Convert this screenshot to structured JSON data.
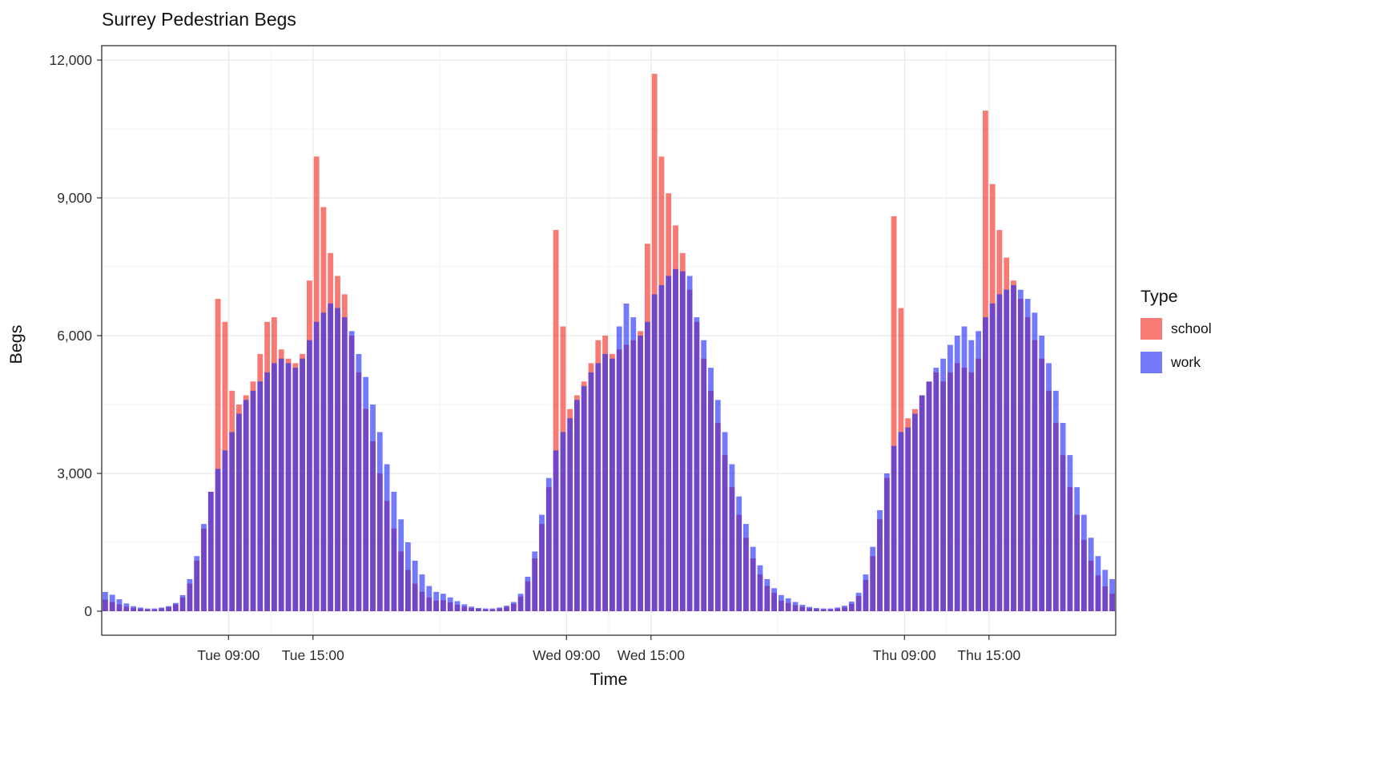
{
  "title": "Surrey Pedestrian Begs",
  "axes": {
    "x_label": "Time",
    "y_label": "Begs"
  },
  "legend": {
    "title": "Type",
    "items": [
      {
        "label": "school",
        "color": "rgba(244,40,30,0.62)"
      },
      {
        "label": "work",
        "color": "rgba(30,40,250,0.62)"
      }
    ]
  },
  "colors": {
    "school_fill": "rgba(244,40,30,0.62)",
    "work_fill": "rgba(30,40,250,0.62)",
    "overlap_appearance": "#7047C7",
    "grid_major": "#e4e4e4",
    "panel_border": "#222222"
  },
  "chart_data": {
    "type": "bar",
    "title": "Surrey Pedestrian Begs",
    "xlabel": "Time",
    "ylabel": "Begs",
    "ylim": [
      0,
      12000
    ],
    "x_start": "Tue 00:00",
    "interval_minutes": 30,
    "hours_span": 72,
    "legend_position": "right",
    "grid": {
      "major_y": [
        0,
        3000,
        6000,
        9000,
        12000
      ],
      "minor_y": [
        1500,
        4500,
        7500,
        10500
      ],
      "major_x_hours": [
        9,
        15,
        33,
        39,
        57,
        63
      ],
      "minor_x_hours": [
        12,
        24,
        36,
        48,
        60
      ]
    },
    "y_ticks": [
      {
        "value": 0,
        "label": "0"
      },
      {
        "value": 3000,
        "label": "3,000"
      },
      {
        "value": 6000,
        "label": "6,000"
      },
      {
        "value": 9000,
        "label": "9,000"
      },
      {
        "value": 12000,
        "label": "12,000"
      }
    ],
    "x_ticks": [
      {
        "hour": 9,
        "label": "Tue 09:00"
      },
      {
        "hour": 15,
        "label": "Tue 15:00"
      },
      {
        "hour": 33,
        "label": "Wed 09:00"
      },
      {
        "hour": 39,
        "label": "Wed 15:00"
      },
      {
        "hour": 57,
        "label": "Thu 09:00"
      },
      {
        "hour": 63,
        "label": "Thu 15:00"
      }
    ],
    "series": [
      {
        "name": "school",
        "color": "rgba(244,40,30,0.62)",
        "values": [
          250,
          200,
          150,
          100,
          70,
          50,
          40,
          40,
          60,
          90,
          150,
          300,
          600,
          1100,
          1800,
          2600,
          6800,
          6300,
          4800,
          4500,
          4700,
          5000,
          5600,
          6300,
          6400,
          5700,
          5500,
          5400,
          5600,
          7200,
          9900,
          8800,
          7800,
          7300,
          6900,
          6000,
          5200,
          4400,
          3700,
          3000,
          2400,
          1800,
          1300,
          900,
          600,
          420,
          300,
          230,
          240,
          190,
          140,
          100,
          70,
          50,
          40,
          40,
          60,
          90,
          160,
          320,
          650,
          1150,
          1900,
          2700,
          8300,
          6200,
          4400,
          4700,
          5000,
          5400,
          5900,
          6000,
          5600,
          5700,
          5800,
          5900,
          6100,
          8000,
          11700,
          9900,
          9100,
          8400,
          7800,
          7000,
          6300,
          5500,
          4800,
          4100,
          3400,
          2700,
          2100,
          1600,
          1150,
          800,
          550,
          400,
          230,
          180,
          130,
          95,
          65,
          48,
          40,
          40,
          55,
          85,
          160,
          330,
          680,
          1200,
          2000,
          2900,
          8600,
          6600,
          4200,
          4400,
          4700,
          5000,
          5200,
          5000,
          5200,
          5400,
          5300,
          5200,
          5500,
          10900,
          9300,
          8300,
          7700,
          7200,
          6800,
          6400,
          5900,
          5500,
          4800,
          4100,
          3400,
          2700,
          2100,
          1550,
          1100,
          780,
          540,
          380
        ]
      },
      {
        "name": "work",
        "color": "rgba(30,40,250,0.62)",
        "values": [
          420,
          360,
          260,
          170,
          110,
          80,
          60,
          60,
          80,
          110,
          180,
          350,
          700,
          1200,
          1900,
          2600,
          3100,
          3500,
          3900,
          4300,
          4600,
          4800,
          5000,
          5200,
          5400,
          5500,
          5400,
          5300,
          5500,
          5900,
          6300,
          6500,
          6700,
          6600,
          6400,
          6100,
          5600,
          5100,
          4500,
          3900,
          3200,
          2600,
          2000,
          1500,
          1100,
          800,
          550,
          420,
          380,
          300,
          220,
          150,
          100,
          70,
          60,
          60,
          80,
          120,
          200,
          380,
          750,
          1300,
          2100,
          2900,
          3500,
          3900,
          4200,
          4600,
          4900,
          5200,
          5400,
          5600,
          5500,
          6200,
          6700,
          6400,
          6000,
          6300,
          6900,
          7100,
          7300,
          7450,
          7400,
          7300,
          6400,
          5900,
          5300,
          4600,
          3900,
          3200,
          2500,
          1900,
          1400,
          1000,
          700,
          500,
          350,
          280,
          200,
          140,
          95,
          70,
          60,
          60,
          80,
          120,
          210,
          400,
          800,
          1400,
          2200,
          3000,
          3600,
          3900,
          4000,
          4300,
          4700,
          5000,
          5300,
          5500,
          5800,
          6000,
          6200,
          5900,
          6100,
          6400,
          6700,
          6900,
          7000,
          7100,
          7000,
          6800,
          6500,
          6000,
          5400,
          4800,
          4100,
          3400,
          2700,
          2100,
          1600,
          1200,
          900,
          700
        ]
      }
    ]
  }
}
